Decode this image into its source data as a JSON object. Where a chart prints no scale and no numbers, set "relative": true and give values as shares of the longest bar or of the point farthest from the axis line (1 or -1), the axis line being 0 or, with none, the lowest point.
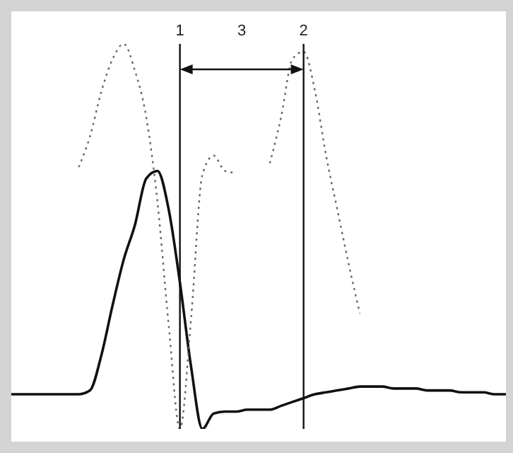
{
  "chart_data": {
    "type": "line",
    "relative": true,
    "tick_labels": false,
    "marker": "none",
    "categories": [
      null,
      null,
      null,
      null,
      null,
      null,
      null,
      null,
      null,
      null,
      null,
      null,
      null,
      null,
      null,
      null,
      null,
      null,
      null,
      null,
      null,
      null,
      null,
      null,
      null,
      null,
      null,
      null,
      null,
      null,
      null,
      null,
      null,
      null,
      null,
      null,
      null,
      null,
      null,
      null,
      null,
      null,
      null,
      null,
      null
    ],
    "series": [
      {
        "color": "#111111",
        "line_style": "solid",
        "values": [
          0.09,
          0.09,
          0.09,
          0.09,
          0.09,
          0.09,
          0.09,
          0.1,
          0.19,
          0.32,
          0.44,
          0.53,
          0.65,
          0.67,
          0.57,
          0.38,
          0.16,
          0,
          0.04,
          0.045,
          0.045,
          0.05,
          0.05,
          0.05,
          0.06,
          0.07,
          0.08,
          0.09,
          0.095,
          0.1,
          0.105,
          0.11,
          0.11,
          0.11,
          0.105,
          0.105,
          0.105,
          0.1,
          0.1,
          0.1,
          0.095,
          0.095,
          0.095,
          0.09,
          0.09
        ]
      },
      {
        "color": "#666666",
        "line_style": "dotted",
        "values": [
          null,
          null,
          null,
          null,
          null,
          null,
          0.68,
          0.76,
          0.875,
          0.96,
          1,
          0.93,
          0.81,
          0.59,
          0.27,
          0,
          0.29,
          0.66,
          0.71,
          0.67,
          0.665,
          null,
          null,
          0.69,
          0.81,
          0.96,
          0.98,
          0.88,
          0.71,
          0.57,
          0.43,
          0.3,
          null,
          null,
          null,
          null,
          null,
          null,
          null,
          null,
          null,
          null,
          null,
          null,
          null
        ]
      }
    ],
    "annotations": [
      "1",
      "3",
      "2"
    ]
  }
}
